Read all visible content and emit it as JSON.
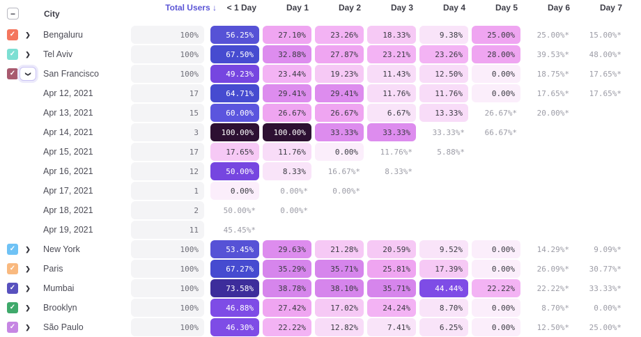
{
  "table": {
    "city_header": "City",
    "total_users_header": "Total Users",
    "sort_arrow": "↓",
    "day_headers": [
      "< 1 Day",
      "Day 1",
      "Day 2",
      "Day 3",
      "Day 4",
      "Day 5",
      "Day 6",
      "Day 7"
    ],
    "rows": [
      {
        "type": "city",
        "label": "Bengaluru",
        "checkbox_color": "#f4765e",
        "checked": true,
        "expanded": false,
        "total": "100%",
        "cells": [
          "56.25%",
          "27.10%",
          "23.26%",
          "18.33%",
          "9.38%",
          "25.00%",
          "25.00%*",
          "15.00%*"
        ]
      },
      {
        "type": "city",
        "label": "Tel Aviv",
        "checkbox_color": "#7ddfd3",
        "checked": true,
        "expanded": false,
        "total": "100%",
        "cells": [
          "67.50%",
          "32.88%",
          "27.87%",
          "23.21%",
          "23.26%",
          "28.00%",
          "39.53%*",
          "48.00%*"
        ]
      },
      {
        "type": "city",
        "label": "San Francisco",
        "checkbox_color": "#a85a6f",
        "checked": true,
        "expanded": true,
        "total": "100%",
        "cells": [
          "49.23%",
          "23.44%",
          "19.23%",
          "11.43%",
          "12.50%",
          "0.00%",
          "18.75%*",
          "17.65%*"
        ]
      },
      {
        "type": "date",
        "label": "Apr 12, 2021",
        "total": "17",
        "cells": [
          "64.71%",
          "29.41%",
          "29.41%",
          "11.76%",
          "11.76%",
          "0.00%",
          "17.65%*",
          "17.65%*"
        ]
      },
      {
        "type": "date",
        "label": "Apr 13, 2021",
        "total": "15",
        "cells": [
          "60.00%",
          "26.67%",
          "26.67%",
          "6.67%",
          "13.33%",
          "26.67%*",
          "20.00%*",
          ""
        ]
      },
      {
        "type": "date",
        "label": "Apr 14, 2021",
        "total": "3",
        "cells": [
          "100.00%",
          "100.00%",
          "33.33%",
          "33.33%",
          "33.33%*",
          "66.67%*",
          "",
          ""
        ]
      },
      {
        "type": "date",
        "label": "Apr 15, 2021",
        "total": "17",
        "cells": [
          "17.65%",
          "11.76%",
          "0.00%",
          "11.76%*",
          "5.88%*",
          "",
          "",
          ""
        ]
      },
      {
        "type": "date",
        "label": "Apr 16, 2021",
        "total": "12",
        "cells": [
          "50.00%",
          "8.33%",
          "16.67%*",
          "8.33%*",
          "",
          "",
          "",
          ""
        ]
      },
      {
        "type": "date",
        "label": "Apr 17, 2021",
        "total": "1",
        "cells": [
          "0.00%",
          "0.00%*",
          "0.00%*",
          "",
          "",
          "",
          "",
          ""
        ]
      },
      {
        "type": "date",
        "label": "Apr 18, 2021",
        "total": "2",
        "cells": [
          "50.00%*",
          "0.00%*",
          "",
          "",
          "",
          "",
          "",
          ""
        ]
      },
      {
        "type": "date",
        "label": "Apr 19, 2021",
        "total": "11",
        "cells": [
          "45.45%*",
          "",
          "",
          "",
          "",
          "",
          "",
          ""
        ]
      },
      {
        "type": "city",
        "label": "New York",
        "checkbox_color": "#6fc2f5",
        "checked": true,
        "expanded": false,
        "total": "100%",
        "cells": [
          "53.45%",
          "29.63%",
          "21.28%",
          "20.59%",
          "9.52%",
          "0.00%",
          "14.29%*",
          "9.09%*"
        ]
      },
      {
        "type": "city",
        "label": "Paris",
        "checkbox_color": "#f9b97f",
        "checked": true,
        "expanded": false,
        "total": "100%",
        "cells": [
          "67.27%",
          "35.29%",
          "35.71%",
          "25.81%",
          "17.39%",
          "0.00%",
          "26.09%*",
          "30.77%*"
        ]
      },
      {
        "type": "city",
        "label": "Mumbai",
        "checkbox_color": "#5851be",
        "checked": true,
        "expanded": false,
        "total": "100%",
        "cells": [
          "73.58%",
          "38.78%",
          "38.10%",
          "35.71%",
          "44.44%",
          "22.22%",
          "22.22%*",
          "33.33%*"
        ]
      },
      {
        "type": "city",
        "label": "Brooklyn",
        "checkbox_color": "#3fa96b",
        "checked": true,
        "expanded": false,
        "total": "100%",
        "cells": [
          "46.88%",
          "27.42%",
          "17.02%",
          "24.24%",
          "8.70%",
          "0.00%",
          "8.70%*",
          "0.00%*"
        ]
      },
      {
        "type": "city",
        "label": "São Paulo",
        "checkbox_color": "#c686e3",
        "checked": true,
        "expanded": false,
        "total": "100%",
        "cells": [
          "46.30%",
          "22.22%",
          "12.82%",
          "7.41%",
          "6.25%",
          "0.00%",
          "12.50%*",
          "25.00%*"
        ]
      }
    ]
  },
  "icons": {
    "select_all_indeterminate": "−",
    "check": "✓",
    "chevron_right": "❯",
    "chevron_down": "❯",
    "sort_desc": "↓"
  },
  "colors": {
    "sorted_header_text": "#5b55d6",
    "header_text": "#3d3d47",
    "row_label_text": "#4c4c56",
    "starred_text": "#9c9ca6",
    "total_pill_bg": "#f4f4f6",
    "total_pill_text": "#6e6e78",
    "cell_dark_text": "#3a3a42",
    "cell_light_text": "#ffffff",
    "heatmap_scale": [
      {
        "min": 95,
        "bg": "#2d1032",
        "fg": "#ffffff"
      },
      {
        "min": 69,
        "bg": "#3d2d9b",
        "fg": "#ffffff"
      },
      {
        "min": 62,
        "bg": "#464bd0",
        "fg": "#ffffff"
      },
      {
        "min": 57,
        "bg": "#5b55de",
        "fg": "#ffffff"
      },
      {
        "min": 51,
        "bg": "#5652d6",
        "fg": "#ffffff"
      },
      {
        "min": 47.5,
        "bg": "#7646e0",
        "fg": "#ffffff"
      },
      {
        "min": 42,
        "bg": "#7e4ce6",
        "fg": "#ffffff"
      },
      {
        "min": 34,
        "bg": "#d685ec",
        "fg": "#3a3a42"
      },
      {
        "min": 28.5,
        "bg": "#dd8cee",
        "fg": "#3a3a42"
      },
      {
        "min": 24.5,
        "bg": "#efa5f1",
        "fg": "#3a3a42"
      },
      {
        "min": 21.5,
        "bg": "#f3b3f4",
        "fg": "#3a3a42"
      },
      {
        "min": 16,
        "bg": "#f6c9f5",
        "fg": "#3a3a42"
      },
      {
        "min": 10,
        "bg": "#f8dcf8",
        "fg": "#3a3a42"
      },
      {
        "min": 5,
        "bg": "#f9e4f9",
        "fg": "#3a3a42"
      },
      {
        "min": 0,
        "bg": "#fbeefb",
        "fg": "#3a3a42"
      }
    ]
  }
}
